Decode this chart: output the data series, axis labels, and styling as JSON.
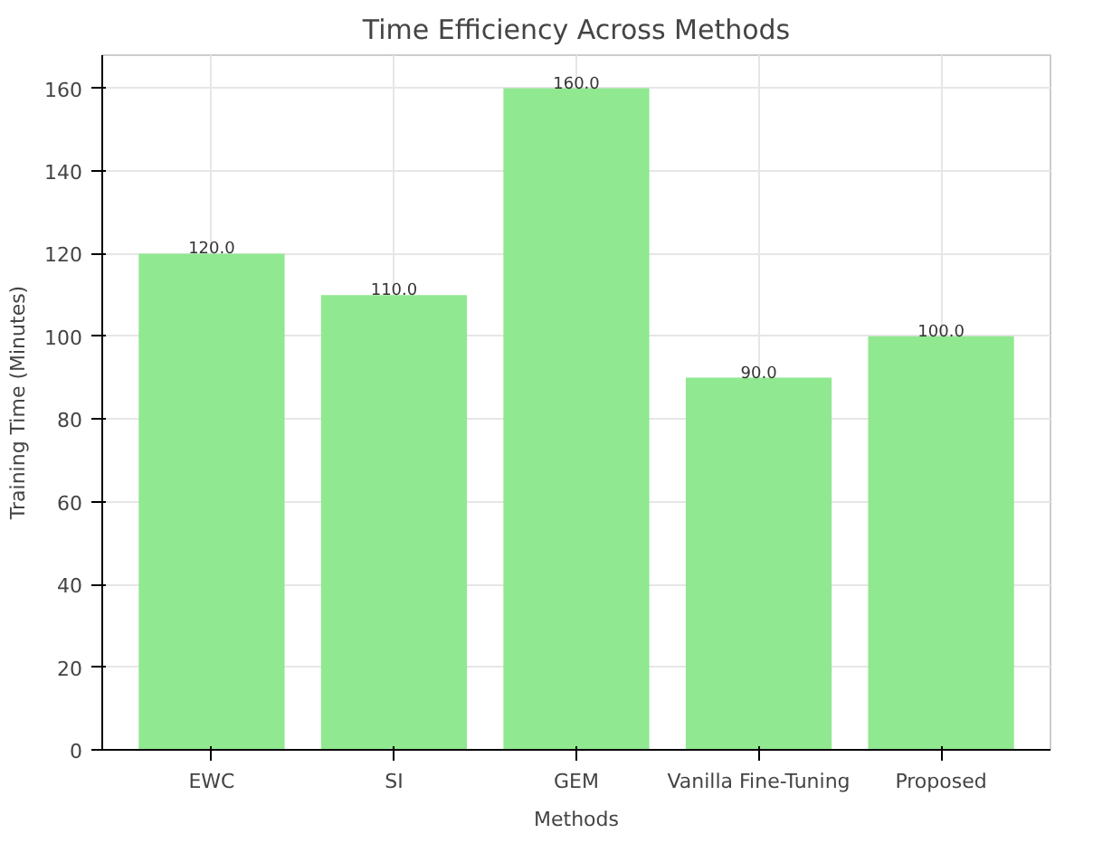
{
  "chart_data": {
    "type": "bar",
    "title": "Time Efficiency Across Methods",
    "xlabel": "Methods",
    "ylabel": "Training Time (Minutes)",
    "categories": [
      "EWC",
      "SI",
      "GEM",
      "Vanilla Fine-Tuning",
      "Proposed"
    ],
    "values": [
      120,
      110,
      160,
      90,
      100
    ],
    "value_labels": [
      "120.0",
      "110.0",
      "160.0",
      "90.0",
      "100.0"
    ],
    "color": "#90e890",
    "ylim": [
      0,
      168
    ],
    "yticks": [
      0,
      20,
      40,
      60,
      80,
      100,
      120,
      140,
      160
    ],
    "grid": true
  }
}
